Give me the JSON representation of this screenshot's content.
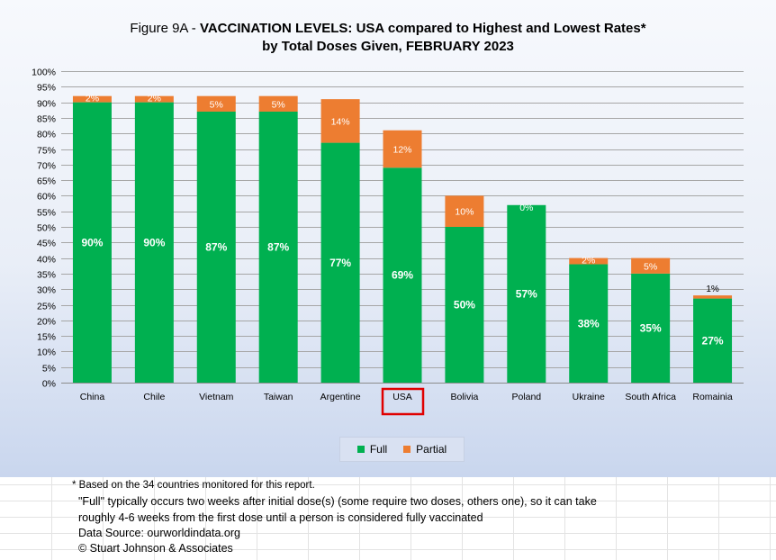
{
  "title": {
    "prefix": "Figure 9A - ",
    "bold": "VACCINATION LEVELS:  USA compared to Highest and Lowest Rates*",
    "line2": "by Total Doses Given, FEBRUARY 2023"
  },
  "chart_data": {
    "type": "bar",
    "stacked": true,
    "categories": [
      "China",
      "Chile",
      "Vietnam",
      "Taiwan",
      "Argentine",
      "USA",
      "Bolivia",
      "Poland",
      "Ukraine",
      "South Africa",
      "Romainia"
    ],
    "series": [
      {
        "name": "Full",
        "color": "#00b050",
        "values": [
          90,
          90,
          87,
          87,
          77,
          69,
          50,
          57,
          38,
          35,
          27
        ],
        "labels": [
          "90%",
          "90%",
          "87%",
          "87%",
          "77%",
          "69%",
          "50%",
          "57%",
          "38%",
          "35%",
          "27%"
        ]
      },
      {
        "name": "Partial",
        "color": "#ed7d31",
        "values": [
          2,
          2,
          5,
          5,
          14,
          12,
          10,
          0,
          2,
          5,
          1
        ],
        "labels": [
          "2%",
          "2%",
          "5%",
          "5%",
          "14%",
          "12%",
          "10%",
          "0%",
          "2%",
          "5%",
          "1%"
        ]
      }
    ],
    "yticks": [
      "0%",
      "5%",
      "10%",
      "15%",
      "20%",
      "25%",
      "30%",
      "35%",
      "40%",
      "45%",
      "50%",
      "55%",
      "60%",
      "65%",
      "70%",
      "75%",
      "80%",
      "85%",
      "90%",
      "95%",
      "100%"
    ],
    "ylim": [
      0,
      100
    ],
    "grid": true,
    "legend_position": "bottom",
    "highlighted_category": "USA",
    "highlight_color": "#e00000"
  },
  "legend": {
    "full": "Full",
    "partial": "Partial"
  },
  "footnotes": {
    "line1": "* Based on the 34 countries monitored for this report.",
    "line2": "\"Full\" typically occurs two weeks after initial dose(s) (some require two doses, others one),  so it can take",
    "line3": "roughly 4-6 weeks from the first dose until a person is considered fully vaccinated",
    "line4": "Data Source:  ourworldindata.org",
    "line5": "© Stuart Johnson & Associates"
  }
}
